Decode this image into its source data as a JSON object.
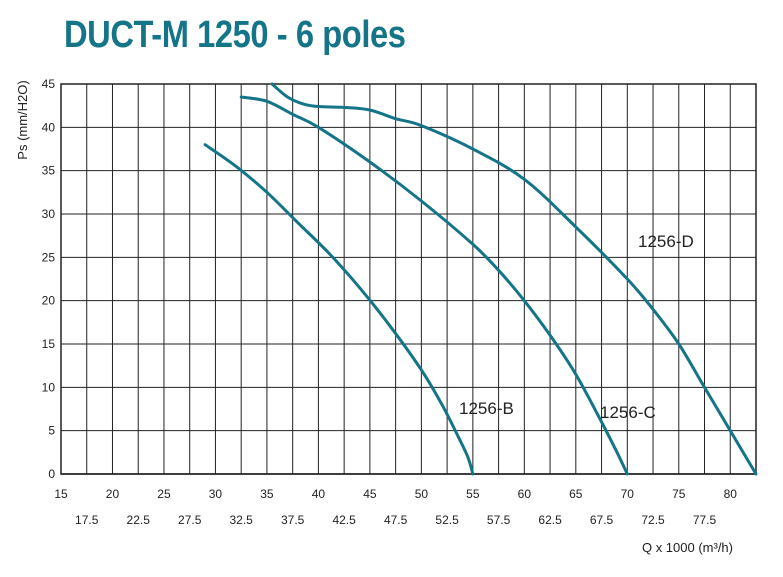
{
  "title": "DUCT-M 1250 - 6 poles",
  "colors": {
    "title": "#147488",
    "curve": "#147488",
    "grid": "#222222"
  },
  "chart_data": {
    "type": "line",
    "title": "DUCT-M 1250 - 6 poles",
    "xlabel": "Q x 1000 (m³/h)",
    "ylabel": "Ps (mm/H2O)",
    "xlim": [
      15,
      82.5
    ],
    "ylim": [
      0,
      45
    ],
    "grid": true,
    "x_ticks_major": [
      "15",
      "20",
      "25",
      "30",
      "35",
      "40",
      "45",
      "50",
      "55",
      "60",
      "65",
      "70",
      "75",
      "80"
    ],
    "x_ticks_minor": [
      "17.5",
      "22.5",
      "27.5",
      "32.5",
      "37.5",
      "42.5",
      "47.5",
      "52.5",
      "57.5",
      "62.5",
      "67.5",
      "72.5",
      "77.5"
    ],
    "y_ticks": [
      "0",
      "5",
      "10",
      "15",
      "20",
      "25",
      "30",
      "35",
      "40",
      "45"
    ],
    "series": [
      {
        "name": "1256-B",
        "points": [
          [
            29,
            38
          ],
          [
            32,
            35.5
          ],
          [
            35,
            32.5
          ],
          [
            38,
            29
          ],
          [
            41,
            25.5
          ],
          [
            44,
            21.5
          ],
          [
            47,
            17
          ],
          [
            50,
            12
          ],
          [
            52,
            8
          ],
          [
            53.5,
            4.5
          ],
          [
            54.5,
            2
          ],
          [
            55,
            0
          ]
        ]
      },
      {
        "name": "1256-C",
        "points": [
          [
            32.5,
            43.5
          ],
          [
            35,
            43
          ],
          [
            37.5,
            41.5
          ],
          [
            40,
            40
          ],
          [
            45,
            36
          ],
          [
            50,
            31.5
          ],
          [
            55,
            26.5
          ],
          [
            57.5,
            23.5
          ],
          [
            60,
            20
          ],
          [
            62.5,
            16
          ],
          [
            65,
            11.5
          ],
          [
            67.5,
            6
          ],
          [
            69,
            2.5
          ],
          [
            70,
            0
          ]
        ]
      },
      {
        "name": "1256-D",
        "points": [
          [
            35.5,
            45
          ],
          [
            37,
            43.5
          ],
          [
            38.5,
            42.7
          ],
          [
            40,
            42.4
          ],
          [
            42.5,
            42.3
          ],
          [
            45,
            42
          ],
          [
            47.5,
            41
          ],
          [
            50,
            40.2
          ],
          [
            55,
            37.5
          ],
          [
            60,
            34
          ],
          [
            65,
            28.5
          ],
          [
            70,
            22.5
          ],
          [
            72.5,
            19
          ],
          [
            75,
            15
          ],
          [
            77.5,
            10
          ],
          [
            80,
            5
          ],
          [
            82.5,
            0
          ]
        ]
      }
    ]
  }
}
